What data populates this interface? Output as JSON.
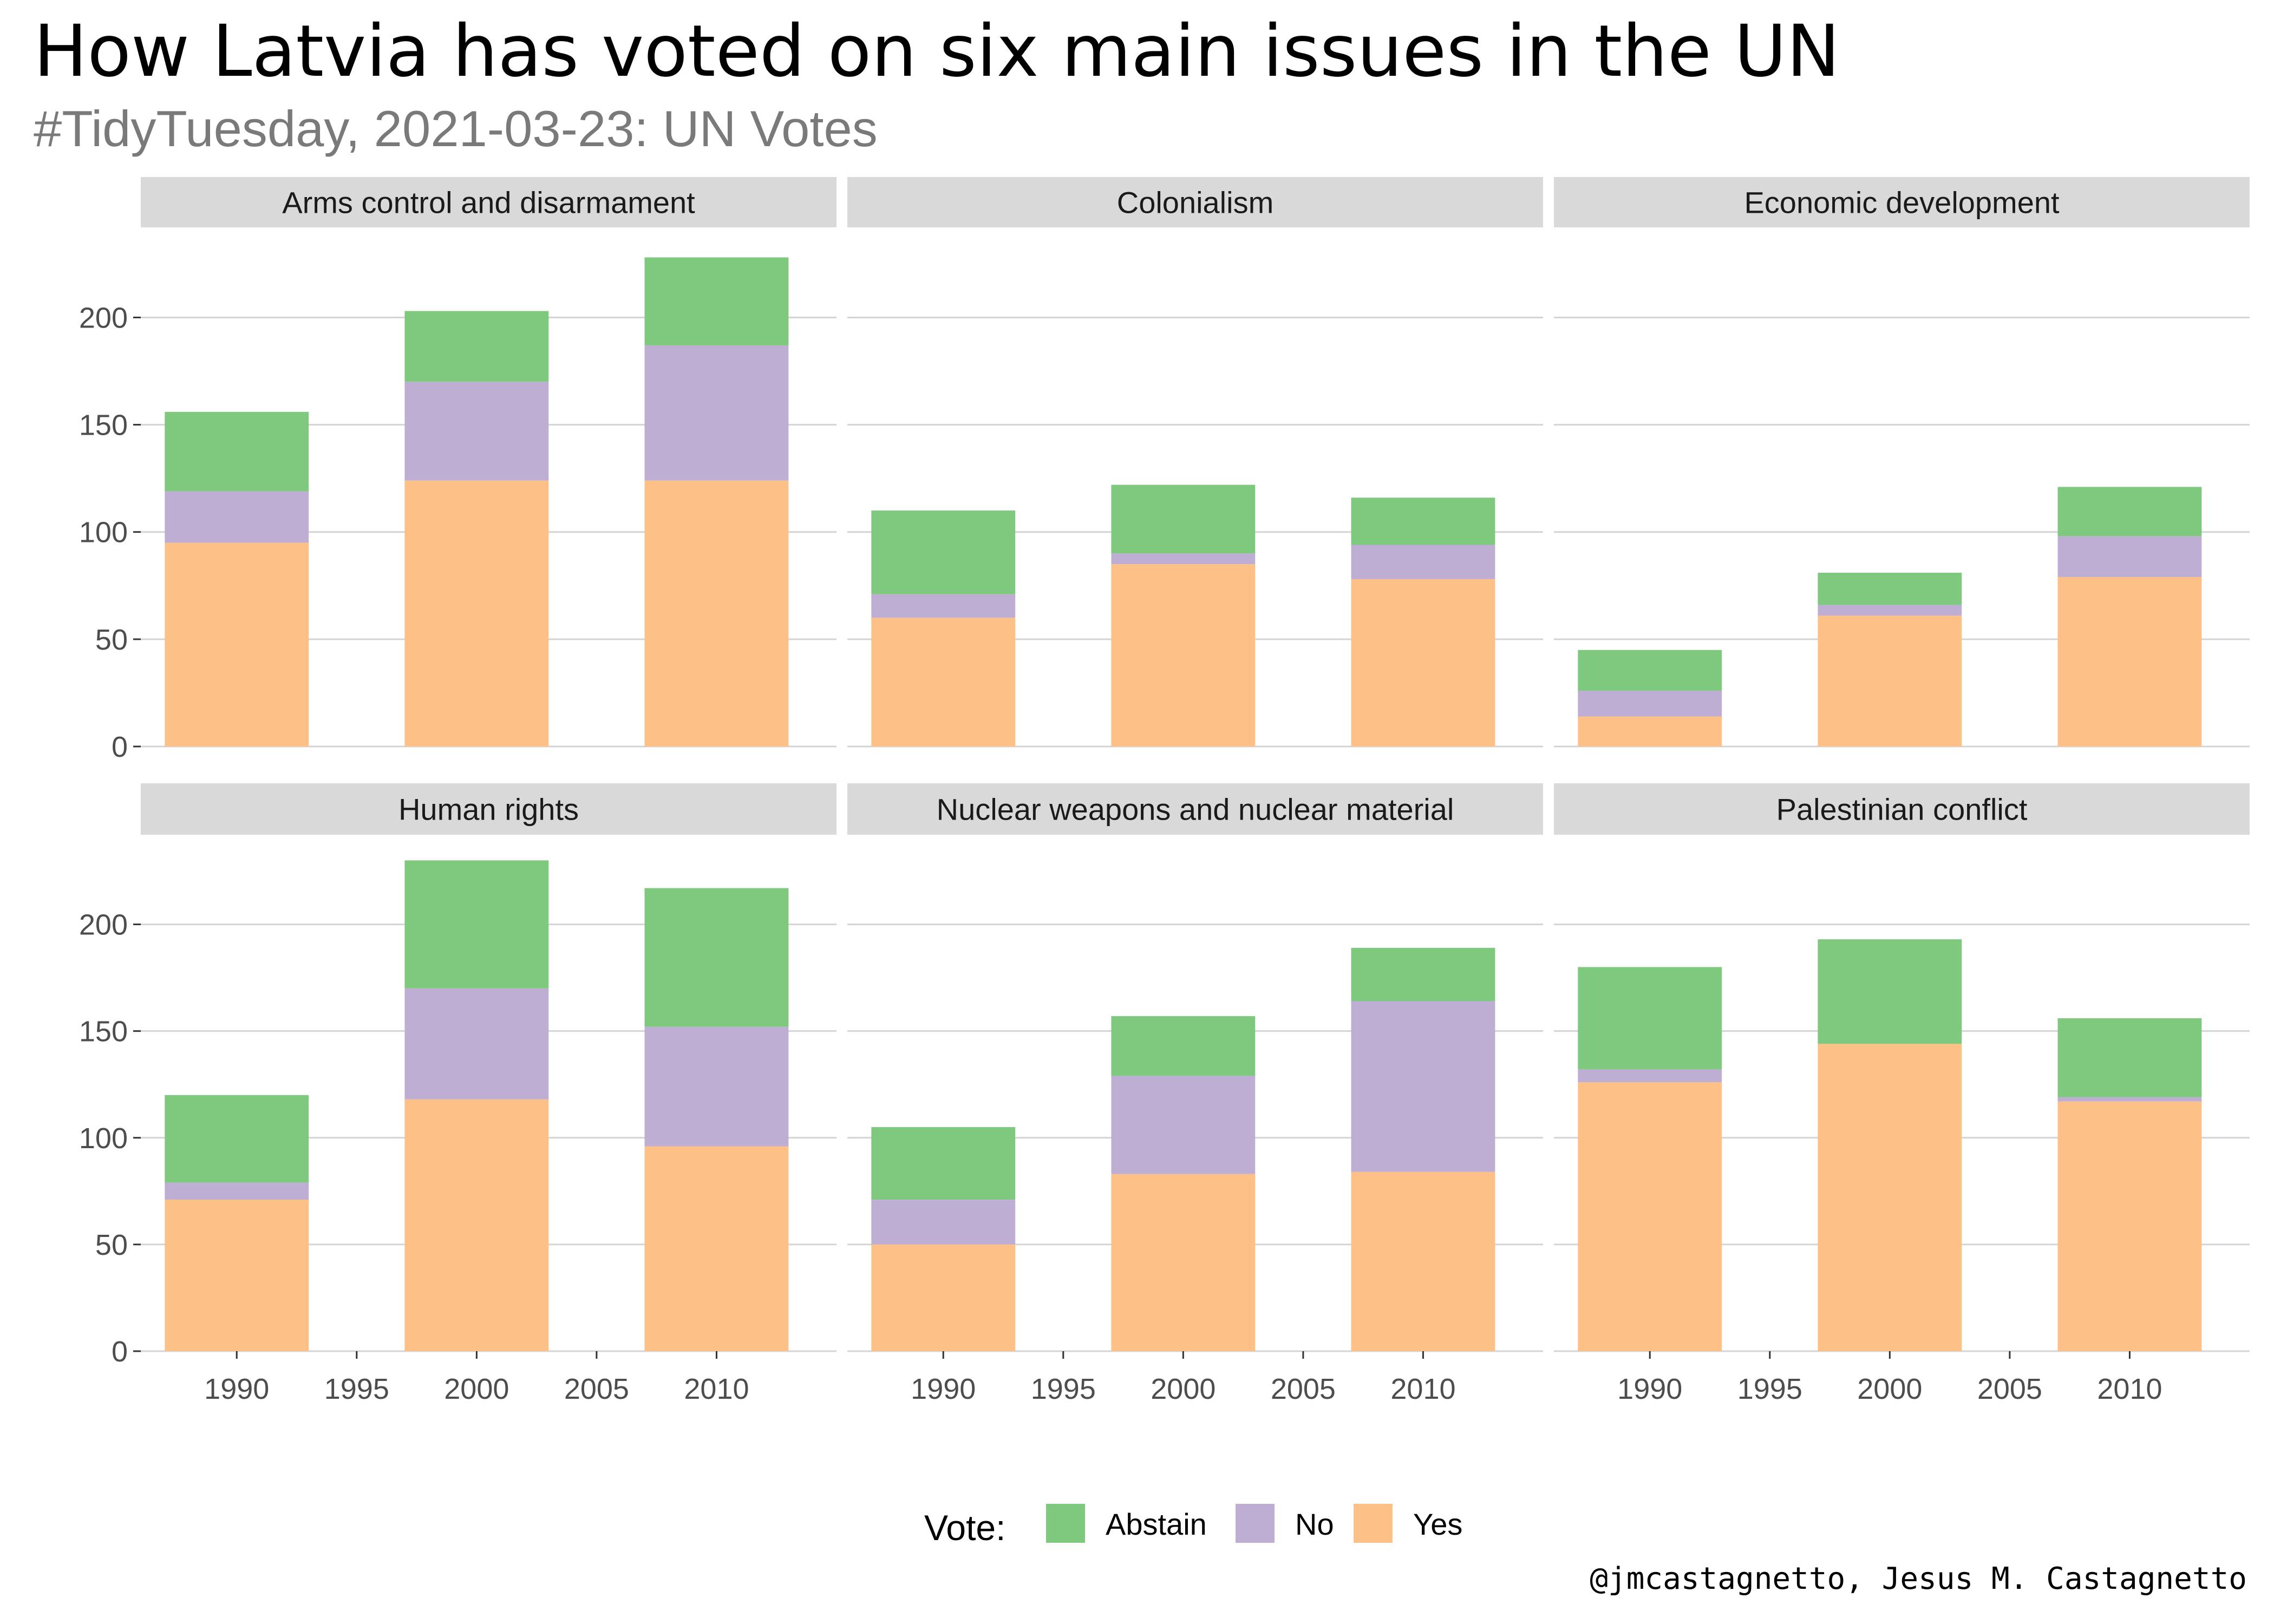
{
  "title": "How Latvia has voted on six main issues in the UN",
  "subtitle": "#TidyTuesday, 2021-03-23: UN Votes",
  "caption": "@jmcastagnetto, Jesus M. Castagnetto",
  "colors": {
    "Abstain": "#7fc97f",
    "No": "#beaed4",
    "Yes": "#fdc086",
    "strip_bg": "#d9d9d9",
    "grid": "#d4d4d4",
    "subtitle": "#7a7a7a"
  },
  "legend": {
    "title": "Vote:",
    "items": [
      "Abstain",
      "No",
      "Yes"
    ]
  },
  "chart_data": {
    "type": "bar",
    "stacked": true,
    "stack_order_bottom_to_top": [
      "Yes",
      "No",
      "Abstain"
    ],
    "x_ticks": [
      "1990",
      "1995",
      "2000",
      "2005",
      "2010"
    ],
    "xlim": [
      1986,
      2015
    ],
    "y_ticks": [
      "0",
      "50",
      "100",
      "150",
      "200"
    ],
    "ylim": [
      0,
      242
    ],
    "grid": true,
    "legend_position": "bottom",
    "categories": [
      1990,
      2000,
      2010
    ],
    "panels": [
      {
        "name": "Arms control and disarmament",
        "series": [
          {
            "name": "Yes",
            "values": [
              95,
              124,
              124
            ]
          },
          {
            "name": "No",
            "values": [
              24,
              46,
              63
            ]
          },
          {
            "name": "Abstain",
            "values": [
              37,
              33,
              41
            ]
          }
        ]
      },
      {
        "name": "Colonialism",
        "series": [
          {
            "name": "Yes",
            "values": [
              60,
              85,
              78
            ]
          },
          {
            "name": "No",
            "values": [
              11,
              5,
              16
            ]
          },
          {
            "name": "Abstain",
            "values": [
              39,
              32,
              22
            ]
          }
        ]
      },
      {
        "name": "Economic development",
        "series": [
          {
            "name": "Yes",
            "values": [
              14,
              61,
              79
            ]
          },
          {
            "name": "No",
            "values": [
              12,
              5,
              19
            ]
          },
          {
            "name": "Abstain",
            "values": [
              19,
              15,
              23
            ]
          }
        ]
      },
      {
        "name": "Human rights",
        "series": [
          {
            "name": "Yes",
            "values": [
              71,
              118,
              96
            ]
          },
          {
            "name": "No",
            "values": [
              8,
              52,
              56
            ]
          },
          {
            "name": "Abstain",
            "values": [
              41,
              60,
              65
            ]
          }
        ]
      },
      {
        "name": "Nuclear weapons and nuclear material",
        "series": [
          {
            "name": "Yes",
            "values": [
              50,
              83,
              84
            ]
          },
          {
            "name": "No",
            "values": [
              21,
              46,
              80
            ]
          },
          {
            "name": "Abstain",
            "values": [
              34,
              28,
              25
            ]
          }
        ]
      },
      {
        "name": "Palestinian conflict",
        "series": [
          {
            "name": "Yes",
            "values": [
              126,
              144,
              117
            ]
          },
          {
            "name": "No",
            "values": [
              6,
              0,
              2
            ]
          },
          {
            "name": "Abstain",
            "values": [
              48,
              49,
              37
            ]
          }
        ]
      }
    ]
  }
}
